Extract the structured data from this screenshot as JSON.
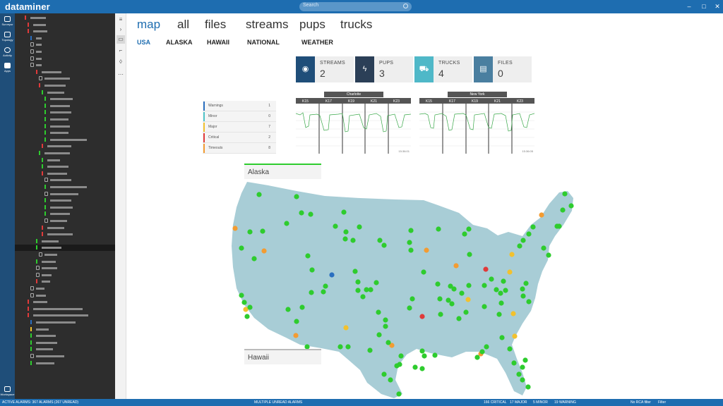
{
  "window": {
    "brand": "dataminer",
    "search_placeholder": "Search"
  },
  "appbar": {
    "items": [
      {
        "label": "Surveyor",
        "icon": "surveyor-icon"
      },
      {
        "label": "Topology",
        "icon": "topology-icon"
      },
      {
        "label": "Activity",
        "icon": "activity-icon"
      },
      {
        "label": "Apps",
        "icon": "apps-icon"
      }
    ],
    "bottom": {
      "label": "Workspace",
      "icon": "workspace-icon"
    }
  },
  "main": {
    "tabs": [
      "map",
      "all",
      "files",
      "streams",
      "pups",
      "trucks"
    ],
    "active_tab": "map",
    "subtabs": [
      "USA",
      "ALASKA",
      "HAWAII",
      "NATIONAL",
      "WEATHER"
    ],
    "active_subtab": "USA"
  },
  "cards": [
    {
      "label": "STREAMS",
      "value": "2",
      "icon": "broadcast-icon",
      "color": "#1f4e79"
    },
    {
      "label": "PUPS",
      "value": "3",
      "icon": "lightning-icon",
      "color": "#2b3f57"
    },
    {
      "label": "TRUCKS",
      "value": "4",
      "icon": "truck-icon",
      "color": "#4fb8c8"
    },
    {
      "label": "FILES",
      "value": "0",
      "icon": "file-icon",
      "color": "#4a7fa0"
    }
  ],
  "alarm_legend": [
    {
      "name": "Warnings",
      "count": "1",
      "color": "#2a6fc0"
    },
    {
      "name": "Minor",
      "count": "0",
      "color": "#4fc3c8"
    },
    {
      "name": "Major",
      "count": "7",
      "color": "#f2c12e"
    },
    {
      "name": "Critical",
      "count": "2",
      "color": "#e03a3a"
    },
    {
      "name": "Timeouts",
      "count": "8",
      "color": "#f39c32"
    }
  ],
  "trends": [
    {
      "title": "Charlotte",
      "labels": [
        "K15",
        "K17",
        "K19",
        "K21",
        "K23"
      ],
      "time": "15:36:01"
    },
    {
      "title": "New York",
      "labels": [
        "K15",
        "K17",
        "K19",
        "K21",
        "K23"
      ],
      "time": "15:36:05"
    }
  ],
  "regions": {
    "alaska": "Alaska",
    "hawaii": "Hawaii"
  },
  "statusbar": {
    "active_alarms": "ACTIVE ALARMS: 367 ALARMS (267 UNREAD)",
    "unread": "MULTIPLE UNREAD ALARMS",
    "critical": "166 CRITICAL",
    "major": "17 MAJOR",
    "minor": "5 MINOR",
    "warning": "19 WARNING",
    "rca": "No RCA filter",
    "filter": "Filter"
  },
  "colors": {
    "accent": "#1e6db0",
    "map_land": "#a8cdd6",
    "normal": "#2ecc2e",
    "timeout": "#f39c32",
    "major": "#f2c12e",
    "critical": "#e03a3a",
    "warning": "#2a6fc0"
  }
}
